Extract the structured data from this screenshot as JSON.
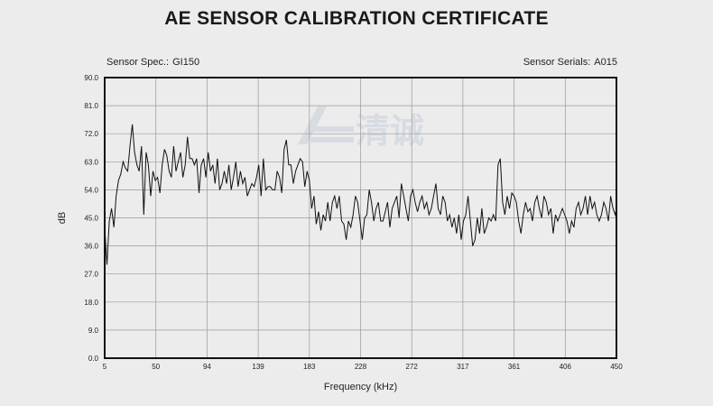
{
  "header": {
    "title": "AE SENSOR CALIBRATION CERTIFICATE",
    "spec_label": "Sensor Spec.:",
    "spec_value": "GI150",
    "serial_label": "Sensor Serials:",
    "serial_value": "A015"
  },
  "watermark": {
    "text": "清诚"
  },
  "chart_data": {
    "type": "line",
    "title": "",
    "xlabel": "Frequency (kHz)",
    "ylabel": "dB",
    "xlim": [
      5,
      450
    ],
    "ylim": [
      0,
      90
    ],
    "x_ticks": [
      "5",
      "50",
      "94",
      "139",
      "183",
      "228",
      "272",
      "317",
      "361",
      "406",
      "450"
    ],
    "y_ticks": [
      "0.0",
      "9.0",
      "18.0",
      "27.0",
      "36.0",
      "45.0",
      "54.0",
      "63.0",
      "72.0",
      "81.0",
      "90.0"
    ],
    "grid": true,
    "line_color": "#111111",
    "series": [
      {
        "x": [
          5,
          7,
          9,
          11,
          13,
          15,
          17,
          19,
          21,
          23,
          25,
          27,
          29,
          31,
          33,
          35,
          37,
          39,
          41,
          43,
          45,
          47,
          49,
          51,
          53,
          55,
          57,
          59,
          61,
          63,
          65,
          67,
          69,
          71,
          73,
          75,
          77,
          79,
          81,
          83,
          85,
          87,
          89,
          91,
          93,
          95,
          97,
          99,
          101,
          103,
          105,
          107,
          109,
          111,
          113,
          115,
          117,
          119,
          121,
          123,
          125,
          127,
          129,
          131,
          133,
          135,
          137,
          139,
          141,
          143,
          145,
          147,
          149,
          151,
          153,
          155,
          157,
          159,
          161,
          163,
          165,
          167,
          169,
          171,
          173,
          175,
          177,
          179,
          181,
          183,
          185,
          187,
          189,
          191,
          193,
          195,
          197,
          199,
          201,
          203,
          205,
          207,
          209,
          211,
          213,
          215,
          217,
          219,
          221,
          223,
          225,
          227,
          229,
          231,
          233,
          235,
          237,
          239,
          241,
          243,
          245,
          247,
          249,
          251,
          253,
          255,
          257,
          259,
          261,
          263,
          265,
          267,
          269,
          271,
          273,
          275,
          277,
          279,
          281,
          283,
          285,
          287,
          289,
          291,
          293,
          295,
          297,
          299,
          301,
          303,
          305,
          307,
          309,
          311,
          313,
          315,
          317,
          319,
          321,
          323,
          325,
          327,
          329,
          331,
          333,
          335,
          337,
          339,
          341,
          343,
          345,
          347,
          349,
          351,
          353,
          355,
          357,
          359,
          361,
          363,
          365,
          367,
          369,
          371,
          373,
          375,
          377,
          379,
          381,
          383,
          385,
          387,
          389,
          391,
          393,
          395,
          397,
          399,
          401,
          403,
          405,
          407,
          409,
          411,
          413,
          415,
          417,
          419,
          421,
          423,
          425,
          427,
          429,
          431,
          433,
          435,
          437,
          439,
          441,
          443,
          445,
          447,
          449,
          450
        ],
        "y": [
          42,
          30,
          44,
          48,
          42,
          52,
          57,
          59,
          63,
          61,
          60,
          68,
          75,
          66,
          62,
          60,
          68,
          46,
          66,
          62,
          52,
          60,
          57,
          58,
          53,
          62,
          67,
          65,
          60,
          58,
          68,
          60,
          63,
          66,
          58,
          62,
          71,
          64,
          64,
          62,
          64,
          53,
          62,
          64,
          58,
          66,
          60,
          62,
          56,
          64,
          54,
          56,
          60,
          56,
          62,
          54,
          58,
          63,
          55,
          60,
          56,
          58,
          52,
          54,
          56,
          55,
          58,
          62,
          52,
          64,
          54,
          55,
          55,
          54,
          54,
          60,
          58,
          53,
          67,
          70,
          62,
          62,
          56,
          60,
          62,
          64,
          63,
          55,
          60,
          57,
          48,
          52,
          43,
          47,
          41,
          46,
          44,
          50,
          44,
          50,
          52,
          48,
          52,
          44,
          43,
          38,
          44,
          42,
          46,
          52,
          50,
          44,
          38,
          45,
          46,
          54,
          50,
          44,
          48,
          50,
          44,
          44,
          47,
          50,
          42,
          48,
          50,
          52,
          45,
          56,
          52,
          48,
          44,
          52,
          54,
          50,
          47,
          50,
          52,
          48,
          50,
          46,
          48,
          52,
          56,
          48,
          46,
          52,
          50,
          44,
          46,
          42,
          45,
          40,
          46,
          38,
          44,
          46,
          52,
          44,
          36,
          38,
          45,
          40,
          48,
          40,
          42,
          45,
          44,
          46,
          44,
          62,
          64,
          50,
          46,
          52,
          48,
          53,
          52,
          50,
          44,
          40,
          46,
          50,
          47,
          48,
          44,
          50,
          52,
          48,
          45,
          52,
          50,
          46,
          48,
          40,
          46,
          44,
          46,
          48,
          46,
          44,
          40,
          44,
          42,
          48,
          50,
          46,
          48,
          52,
          46,
          52,
          48,
          50,
          46,
          44,
          46,
          50,
          48,
          44,
          52,
          48,
          46,
          48
        ]
      }
    ]
  }
}
